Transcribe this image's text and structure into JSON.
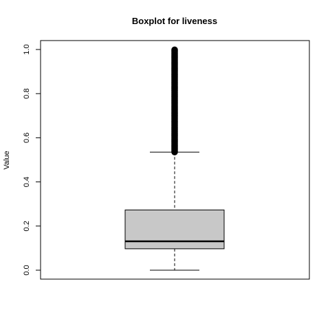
{
  "chart_data": {
    "type": "boxplot",
    "title": "Boxplot for liveness",
    "xlabel": "",
    "ylabel": "Value",
    "ylim": [
      0.0,
      1.0
    ],
    "yticks": [
      "0.0",
      "0.2",
      "0.4",
      "0.6",
      "0.8",
      "1.0"
    ],
    "grid": false,
    "box": {
      "whisker_low": 0.0,
      "q1": 0.097,
      "median": 0.131,
      "q3": 0.273,
      "whisker_high": 0.535
    },
    "outliers_range": [
      0.535,
      1.0
    ],
    "colors": {
      "box_fill": "#c8c8c8",
      "stroke": "#000000",
      "outlier": "#000000"
    }
  }
}
